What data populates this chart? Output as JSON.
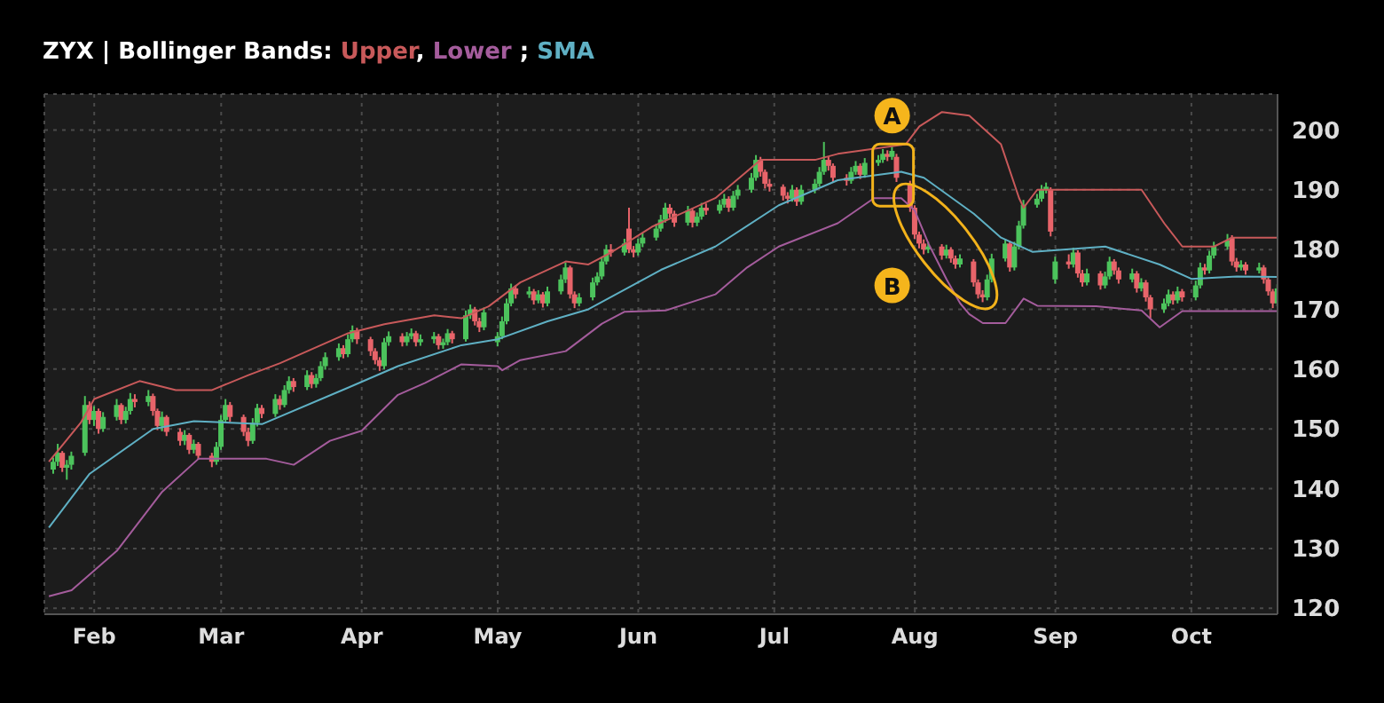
{
  "chart_data": {
    "type": "candlestick",
    "title": "ZYX | Bollinger Bands:",
    "legend": "top left",
    "grid": true,
    "xlim": [
      "--01-21",
      "--10-20"
    ],
    "xticks": [
      {
        "value": "--02-01",
        "label": "Feb"
      },
      {
        "value": "--03-01",
        "label": "Mar"
      },
      {
        "value": "--04-01",
        "label": "Apr"
      },
      {
        "value": "--05-01",
        "label": "May"
      },
      {
        "value": "--06-01",
        "label": "Jun"
      },
      {
        "value": "--07-01",
        "label": "Jul"
      },
      {
        "value": "--08-01",
        "label": "Aug"
      },
      {
        "value": "--09-01",
        "label": "Sep"
      },
      {
        "value": "--10-01",
        "label": "Oct"
      }
    ],
    "ylim": [
      119,
      206
    ],
    "yticks": [
      120,
      130,
      140,
      150,
      160,
      170,
      180,
      190,
      200
    ],
    "x": [
      "--01-23",
      "--01-24",
      "--01-25",
      "--01-26",
      "--01-27",
      "--01-30",
      "--01-31",
      "--02-01",
      "--02-02",
      "--02-03",
      "--02-06",
      "--02-07",
      "--02-08",
      "--02-09",
      "--02-10",
      "--02-13",
      "--02-14",
      "--02-15",
      "--02-16",
      "--02-17",
      "--02-20",
      "--02-21",
      "--02-22",
      "--02-23",
      "--02-24",
      "--02-27",
      "--02-28",
      "--03-01",
      "--03-02",
      "--03-03",
      "--03-06",
      "--03-07",
      "--03-08",
      "--03-09",
      "--03-10",
      "--03-13",
      "--03-14",
      "--03-15",
      "--03-16",
      "--03-17",
      "--03-20",
      "--03-21",
      "--03-22",
      "--03-23",
      "--03-24",
      "--03-27",
      "--03-28",
      "--03-29",
      "--03-30",
      "--03-31",
      "--04-03",
      "--04-04",
      "--04-05",
      "--04-06",
      "--04-07",
      "--04-10",
      "--04-11",
      "--04-12",
      "--04-13",
      "--04-14",
      "--04-17",
      "--04-18",
      "--04-19",
      "--04-20",
      "--04-21",
      "--04-24",
      "--04-25",
      "--04-26",
      "--04-27",
      "--04-28",
      "--05-01",
      "--05-02",
      "--05-03",
      "--05-04",
      "--05-05",
      "--05-08",
      "--05-09",
      "--05-10",
      "--05-11",
      "--05-12",
      "--05-15",
      "--05-16",
      "--05-17",
      "--05-18",
      "--05-19",
      "--05-22",
      "--05-23",
      "--05-24",
      "--05-25",
      "--05-26",
      "--05-29",
      "--05-30",
      "--05-31",
      "--06-01",
      "--06-02",
      "--06-05",
      "--06-06",
      "--06-07",
      "--06-08",
      "--06-09",
      "--06-12",
      "--06-13",
      "--06-14",
      "--06-15",
      "--06-16",
      "--06-19",
      "--06-20",
      "--06-21",
      "--06-22",
      "--06-23",
      "--06-26",
      "--06-27",
      "--06-28",
      "--06-29",
      "--06-30",
      "--07-03",
      "--07-04",
      "--07-05",
      "--07-06",
      "--07-07",
      "--07-10",
      "--07-11",
      "--07-12",
      "--07-13",
      "--07-14",
      "--07-17",
      "--07-18",
      "--07-19",
      "--07-20",
      "--07-21",
      "--07-24",
      "--07-25",
      "--07-26",
      "--07-27",
      "--07-28",
      "--07-31",
      "--08-01",
      "--08-02",
      "--08-03",
      "--08-04",
      "--08-07",
      "--08-08",
      "--08-09",
      "--08-10",
      "--08-11",
      "--08-14",
      "--08-15",
      "--08-16",
      "--08-17",
      "--08-18",
      "--08-21",
      "--08-22",
      "--08-23",
      "--08-24",
      "--08-25",
      "--08-28",
      "--08-29",
      "--08-30",
      "--08-31",
      "--09-01",
      "--09-04",
      "--09-05",
      "--09-06",
      "--09-07",
      "--09-08",
      "--09-11",
      "--09-12",
      "--09-13",
      "--09-14",
      "--09-15",
      "--09-18",
      "--09-19",
      "--09-20",
      "--09-21",
      "--09-22",
      "--09-25",
      "--09-26",
      "--09-27",
      "--09-28",
      "--09-29",
      "--10-02",
      "--10-03",
      "--10-04",
      "--10-05",
      "--10-06",
      "--10-09",
      "--10-10",
      "--10-11",
      "--10-12",
      "--10-13",
      "--10-16",
      "--10-17",
      "--10-18",
      "--10-19",
      "--10-20"
    ],
    "ohlc": [
      [
        143.2,
        145.2,
        142.5,
        144.5
      ],
      [
        144.5,
        147.5,
        143.8,
        146
      ],
      [
        146,
        146.3,
        142.8,
        143.5
      ],
      [
        143.5,
        144.8,
        141.5,
        144
      ],
      [
        144,
        146.2,
        143.2,
        145.5
      ],
      [
        146,
        155.5,
        145.5,
        154
      ],
      [
        154,
        154.6,
        150.8,
        151.5
      ],
      [
        151.5,
        153.8,
        150.5,
        153
      ],
      [
        153,
        153.4,
        149.2,
        150
      ],
      [
        150,
        152.8,
        149.5,
        152
      ],
      [
        152,
        155,
        151.4,
        154
      ],
      [
        154,
        154.3,
        150.8,
        151.5
      ],
      [
        151.5,
        153.7,
        150.9,
        153
      ],
      [
        153,
        156,
        152.4,
        155
      ],
      [
        155,
        155.8,
        153.6,
        154.5
      ],
      [
        154.5,
        156.5,
        153.8,
        155.5
      ],
      [
        155.5,
        155.9,
        152.2,
        153
      ],
      [
        153,
        153.4,
        149.8,
        150.5
      ],
      [
        150.5,
        152.9,
        149.6,
        152
      ],
      [
        152,
        152.3,
        148.8,
        149.5
      ],
      [
        149.5,
        150.1,
        147.2,
        148
      ],
      [
        148,
        149.8,
        147.3,
        149
      ],
      [
        149,
        149.3,
        145.8,
        146.5
      ],
      [
        146.5,
        148.2,
        145.9,
        147.5
      ],
      [
        147.5,
        147.8,
        144.9,
        145.5
      ],
      [
        145.5,
        146,
        143.6,
        144.5
      ],
      [
        144.5,
        147.8,
        144,
        147
      ],
      [
        147,
        152.3,
        146.5,
        151.5
      ],
      [
        151.5,
        155,
        151,
        154
      ],
      [
        154,
        154.5,
        151.2,
        152
      ],
      [
        152,
        152.4,
        148.8,
        149.5
      ],
      [
        149.5,
        150.2,
        147.1,
        148
      ],
      [
        148,
        151.8,
        147.5,
        151
      ],
      [
        151,
        154.2,
        150.4,
        153.5
      ],
      [
        153.5,
        154,
        151.8,
        152.5
      ],
      [
        152.5,
        155.8,
        152,
        155
      ],
      [
        155,
        155.6,
        153.2,
        154
      ],
      [
        154,
        157.3,
        153.6,
        156.5
      ],
      [
        156.5,
        158.8,
        155.9,
        158
      ],
      [
        158,
        158.5,
        156.2,
        157
      ],
      [
        157,
        159.8,
        156.5,
        159
      ],
      [
        159,
        159.5,
        156.8,
        157.5
      ],
      [
        157.5,
        159.2,
        156.9,
        158.5
      ],
      [
        158.5,
        161.3,
        158,
        160.5
      ],
      [
        160.5,
        162.8,
        159.9,
        162
      ],
      [
        162,
        164.3,
        161.4,
        163.5
      ],
      [
        163.5,
        164,
        161.8,
        162.5
      ],
      [
        162.5,
        165.8,
        162,
        165
      ],
      [
        165,
        167.3,
        164.5,
        166.5
      ],
      [
        166.5,
        166.9,
        164.2,
        165
      ],
      [
        165,
        165.4,
        162.2,
        163
      ],
      [
        163,
        163.5,
        160.8,
        161.5
      ],
      [
        161.5,
        162,
        159.7,
        160.5
      ],
      [
        160.5,
        165.2,
        160,
        164.5
      ],
      [
        164.5,
        166.3,
        163.9,
        165.5
      ],
      [
        165.5,
        166,
        163.8,
        164.5
      ],
      [
        164.5,
        166.2,
        163.9,
        165.5
      ],
      [
        165.5,
        166.8,
        165,
        166
      ],
      [
        166,
        166.4,
        163.8,
        164.5
      ],
      [
        164.5,
        165.8,
        163.9,
        165
      ],
      [
        165,
        166.2,
        164.3,
        165.5
      ],
      [
        165.5,
        165.9,
        163.3,
        164
      ],
      [
        164,
        165.1,
        163.4,
        164.5
      ],
      [
        164.5,
        166.7,
        164,
        166
      ],
      [
        166,
        166.4,
        164.3,
        165
      ],
      [
        165,
        169.8,
        164.6,
        169
      ],
      [
        169,
        170.8,
        168.4,
        170
      ],
      [
        170,
        170.4,
        167.3,
        168
      ],
      [
        168,
        168.6,
        166.2,
        167
      ],
      [
        167,
        170.3,
        166.5,
        169.5
      ],
      [
        164.5,
        166.2,
        163.8,
        165.5
      ],
      [
        165.5,
        168.8,
        165,
        168
      ],
      [
        168,
        171.8,
        167.5,
        171
      ],
      [
        171,
        174.3,
        170.5,
        173.5
      ],
      [
        173.5,
        174,
        171.8,
        172.5
      ],
      [
        172.5,
        173.8,
        171.9,
        173
      ],
      [
        173,
        173.4,
        170.8,
        171.5
      ],
      [
        171.5,
        173.2,
        171,
        172.5
      ],
      [
        172.5,
        172.9,
        170.3,
        171
      ],
      [
        171,
        173.8,
        170.5,
        173
      ],
      [
        173,
        175.8,
        172.5,
        175
      ],
      [
        175,
        177.8,
        174.4,
        177
      ],
      [
        177,
        177.3,
        171.8,
        172.5
      ],
      [
        172.5,
        173,
        170.2,
        171
      ],
      [
        171,
        172.7,
        170.5,
        172
      ],
      [
        172,
        175.3,
        171.5,
        174.5
      ],
      [
        174.5,
        176.2,
        174,
        175.5
      ],
      [
        175.5,
        178.8,
        175,
        178
      ],
      [
        178,
        180.8,
        177.5,
        180
      ],
      [
        180,
        180.9,
        178.8,
        179.5
      ],
      [
        179.5,
        181.8,
        179,
        181
      ],
      [
        183.5,
        187,
        179.4,
        180
      ],
      [
        180,
        180.6,
        178.7,
        179.5
      ],
      [
        179.5,
        181.8,
        179,
        181
      ],
      [
        181,
        182.8,
        180.4,
        182
      ],
      [
        182,
        184.3,
        181.5,
        183.5
      ],
      [
        183.5,
        185.8,
        183,
        185
      ],
      [
        185,
        187.8,
        184.5,
        187
      ],
      [
        187,
        187.6,
        185.3,
        186
      ],
      [
        186,
        186.5,
        183.8,
        184.5
      ],
      [
        184.5,
        187.3,
        184,
        186.5
      ],
      [
        186.5,
        186.9,
        183.7,
        184.5
      ],
      [
        184.5,
        186.2,
        183.9,
        185.5
      ],
      [
        185.5,
        187.8,
        185,
        187
      ],
      [
        187,
        187.7,
        185.8,
        186.5
      ],
      [
        186.5,
        188.3,
        186,
        187.5
      ],
      [
        187.5,
        189.3,
        187,
        188.5
      ],
      [
        188.5,
        188.9,
        186.3,
        187
      ],
      [
        187,
        189.8,
        186.5,
        189
      ],
      [
        189,
        190.8,
        188.4,
        190
      ],
      [
        190,
        192.8,
        189.5,
        192
      ],
      [
        192,
        195.8,
        191.5,
        195
      ],
      [
        195,
        195.5,
        192.2,
        193
      ],
      [
        193,
        193.4,
        190.2,
        191
      ],
      [
        191,
        191.8,
        189.7,
        190.5
      ],
      [
        190.5,
        190.9,
        188.2,
        189
      ],
      [
        189,
        189.6,
        187.7,
        188.5
      ],
      [
        188.5,
        190.8,
        188,
        190
      ],
      [
        190,
        190.4,
        187.3,
        188
      ],
      [
        188,
        190.8,
        187.5,
        190
      ],
      [
        190,
        191.8,
        189.4,
        191
      ],
      [
        191,
        193.8,
        190.5,
        193
      ],
      [
        193,
        198,
        192.5,
        195
      ],
      [
        195,
        195.6,
        193.2,
        194
      ],
      [
        194,
        194.4,
        191.3,
        192
      ],
      [
        192,
        192.6,
        190.7,
        191.5
      ],
      [
        191.5,
        193.8,
        191,
        193
      ],
      [
        193,
        194.8,
        192.5,
        194
      ],
      [
        194,
        194.4,
        191.8,
        192.5
      ],
      [
        192.5,
        195.3,
        192,
        194.5
      ],
      [
        194.5,
        195.8,
        194,
        195
      ],
      [
        195,
        196.8,
        194.5,
        196
      ],
      [
        196,
        196.6,
        194.8,
        195.5
      ],
      [
        195.5,
        197.2,
        195,
        196.5
      ],
      [
        195.5,
        196,
        191.3,
        192
      ],
      [
        191,
        191.5,
        186.3,
        187
      ],
      [
        187,
        187.4,
        181.8,
        182.5
      ],
      [
        182.5,
        183,
        180.2,
        181
      ],
      [
        181,
        181.7,
        179.2,
        180
      ],
      [
        180,
        181.3,
        179.4,
        180.5
      ],
      [
        180.5,
        180.9,
        178.3,
        179
      ],
      [
        179,
        180.8,
        178.5,
        180
      ],
      [
        180,
        180.4,
        177.8,
        178.5
      ],
      [
        178.5,
        179,
        176.8,
        177.5
      ],
      [
        177.5,
        179.2,
        177,
        178.5
      ],
      [
        178,
        178.4,
        173.8,
        174.5
      ],
      [
        174.5,
        175,
        171.8,
        172.5
      ],
      [
        172.5,
        173.2,
        171.2,
        172
      ],
      [
        172,
        175.8,
        171.5,
        175
      ],
      [
        175,
        179.3,
        174.5,
        178.5
      ],
      [
        178.5,
        181.8,
        178,
        181
      ],
      [
        181,
        181.4,
        176.3,
        177
      ],
      [
        177,
        181.3,
        176.5,
        180.5
      ],
      [
        180.5,
        184.8,
        180,
        184
      ],
      [
        184,
        188.3,
        183.5,
        187.5
      ],
      [
        187.5,
        189.3,
        187,
        188.5
      ],
      [
        188.5,
        190.8,
        188,
        190
      ],
      [
        190,
        191.2,
        189.4,
        190.5
      ],
      [
        190,
        190.4,
        182.2,
        183
      ],
      [
        175,
        178.8,
        174.3,
        178
      ],
      [
        178,
        179.2,
        176.8,
        177.5
      ],
      [
        177.5,
        180.3,
        177,
        179.5
      ],
      [
        179.5,
        179.9,
        175.3,
        176
      ],
      [
        176,
        176.6,
        173.8,
        174.5
      ],
      [
        174.5,
        176.8,
        174,
        176
      ],
      [
        176,
        176.4,
        173.3,
        174
      ],
      [
        174,
        176.3,
        173.5,
        175.5
      ],
      [
        175.5,
        178.8,
        175,
        178
      ],
      [
        178,
        178.4,
        175.8,
        176.5
      ],
      [
        176.5,
        177,
        174.3,
        175
      ],
      [
        175,
        176.8,
        174.5,
        176
      ],
      [
        176,
        176.4,
        172.8,
        173.5
      ],
      [
        173.5,
        175.2,
        173,
        174.5
      ],
      [
        174.5,
        174.9,
        171.3,
        172
      ],
      [
        172,
        172.4,
        168.5,
        170
      ],
      [
        170,
        171.8,
        169.4,
        171
      ],
      [
        171,
        173.3,
        170.5,
        172.5
      ],
      [
        172.5,
        173,
        170.8,
        171.5
      ],
      [
        171.5,
        173.8,
        171,
        173
      ],
      [
        173,
        173.4,
        171.3,
        172
      ],
      [
        172,
        174.8,
        171.5,
        174
      ],
      [
        174,
        177.8,
        173.5,
        177
      ],
      [
        177,
        177.6,
        175.8,
        176.5
      ],
      [
        176.5,
        179.8,
        176,
        179
      ],
      [
        179,
        181.3,
        178.5,
        180.5
      ],
      [
        180.5,
        182.6,
        180,
        181.5
      ],
      [
        182,
        182.4,
        177.3,
        178
      ],
      [
        178,
        178.6,
        176.3,
        177
      ],
      [
        177,
        178.2,
        176.5,
        177.5
      ],
      [
        177.5,
        177.9,
        175.8,
        176.5
      ],
      [
        176.5,
        177.8,
        176,
        177
      ],
      [
        177,
        177.4,
        174.3,
        175
      ],
      [
        175,
        175.4,
        172.3,
        173
      ],
      [
        173,
        173.4,
        170.2,
        171
      ],
      [
        171,
        174.2,
        170.5,
        173.5
      ]
    ],
    "series": [
      {
        "name": "Upper,",
        "type": "line",
        "color": "#c8595a",
        "x": [
          "--01-22",
          "--01-29",
          "--02-01",
          "--02-11",
          "--02-19",
          "--02-27",
          "--03-07",
          "--03-14",
          "--03-29",
          "--04-06",
          "--04-17",
          "--04-23",
          "--04-29",
          "--05-06",
          "--05-16",
          "--05-21",
          "--05-26",
          "--06-04",
          "--06-18",
          "--06-28",
          "--07-10",
          "--07-15",
          "--07-30",
          "--08-02",
          "--08-07",
          "--08-13",
          "--08-20",
          "--08-24",
          "--08-25",
          "--08-28",
          "--09-20",
          "--09-25",
          "--09-29",
          "--10-06",
          "--10-10",
          "--10-20"
        ],
        "values": [
          144.5,
          151,
          155,
          158,
          156.5,
          156.5,
          159,
          161,
          166,
          167.5,
          169,
          168.5,
          170.5,
          174.5,
          178,
          177.5,
          179.5,
          183.8,
          188.6,
          195,
          195,
          196,
          197.6,
          200.6,
          203,
          202.4,
          197.6,
          188.6,
          187,
          190,
          190,
          184.4,
          180.5,
          180.5,
          182,
          182
        ]
      },
      {
        "name": "Lower ;",
        "type": "line",
        "color": "#a45c9c",
        "x": [
          "--01-22",
          "--01-27",
          "--02-06",
          "--02-16",
          "--02-24",
          "--03-11",
          "--03-17",
          "--03-25",
          "--04-01",
          "--04-09",
          "--04-15",
          "--04-23",
          "--05-01",
          "--05-02",
          "--05-06",
          "--05-16",
          "--05-24",
          "--05-29",
          "--06-07",
          "--06-18",
          "--06-25",
          "--07-02",
          "--07-15",
          "--07-23",
          "--07-29",
          "--08-01",
          "--08-04",
          "--08-08",
          "--08-11",
          "--08-13",
          "--08-16",
          "--08-21",
          "--08-25",
          "--08-28",
          "--09-10",
          "--09-20",
          "--09-24",
          "--09-29",
          "--10-20"
        ],
        "values": [
          122,
          123,
          129.6,
          139.5,
          145,
          145,
          144,
          148,
          149.7,
          155.7,
          157.7,
          160.8,
          160.5,
          159.8,
          161.5,
          163,
          167.6,
          169.6,
          169.8,
          172.5,
          177,
          180.5,
          184.4,
          188.6,
          188.6,
          186.5,
          181,
          175,
          171,
          169.2,
          167.7,
          167.7,
          171.8,
          170.6,
          170.5,
          169.8,
          167,
          169.7,
          169.7
        ]
      },
      {
        "name": "SMA",
        "type": "line",
        "color": "#5fb0c4",
        "x": [
          "--01-22",
          "--01-31",
          "--02-14",
          "--02-23",
          "--03-10",
          "--03-29",
          "--04-09",
          "--04-23",
          "--05-01",
          "--05-12",
          "--05-21",
          "--06-06",
          "--06-18",
          "--07-02",
          "--07-15",
          "--07-29",
          "--08-03",
          "--08-14",
          "--08-20",
          "--08-27",
          "--09-12",
          "--09-24",
          "--10-01",
          "--10-11",
          "--10-20"
        ],
        "values": [
          133.5,
          142.5,
          150,
          151.3,
          150.8,
          156.9,
          160.5,
          164,
          165,
          168,
          170,
          176.6,
          180.5,
          187.4,
          191.6,
          193,
          192,
          186,
          182,
          179.6,
          180.5,
          177.5,
          175.1,
          175.5,
          175.4
        ]
      }
    ],
    "annotations": [
      {
        "text": "A",
        "x": "--07-27",
        "y": 202.4
      },
      {
        "text": "B",
        "x": "--07-27",
        "y": 174
      }
    ]
  }
}
